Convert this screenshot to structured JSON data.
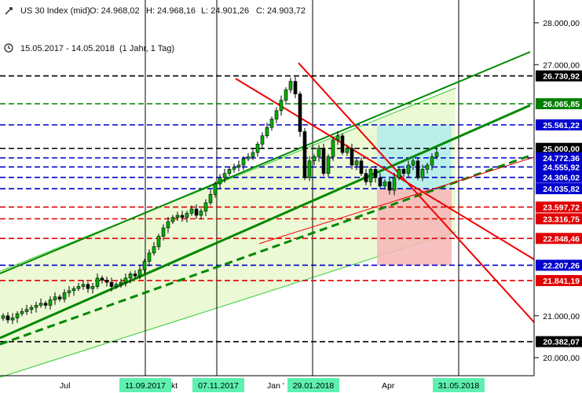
{
  "header": {
    "symbol": "US 30 Index (mid)",
    "open": "O: 24.968,02",
    "high": "H: 24.968,16",
    "low": "L: 24.901,26",
    "close": "C: 24.903,72",
    "range": "15.05.2017 - 14.05.2018",
    "period": "(1 Jahr, 1 Tag)"
  },
  "colors": {
    "black": "#000000",
    "green": "#008000",
    "red": "#e00000",
    "blue": "#0000cc",
    "light_green_fill": "#eaf8d0",
    "cyan_box": "#b0ecec",
    "pink_box": "#f7b6b6",
    "date_tag": "#5ef0b0"
  },
  "chart_data": {
    "type": "candlestick",
    "title": "US 30 Index (mid)",
    "y_axis_ticks": [
      "28.000,00",
      "27.000,00",
      "21.000,00",
      "20.000,00"
    ],
    "x_axis_labels": [
      "Jul",
      "Okt",
      "Jan",
      "Apr"
    ],
    "ylim": [
      19850,
      28400
    ],
    "price_levels": [
      {
        "label": "26.730,92",
        "value": 26730.92,
        "color": "black"
      },
      {
        "label": "26.065,85",
        "value": 26065.85,
        "color": "green"
      },
      {
        "label": "25.561,22",
        "value": 25561.22,
        "color": "blue"
      },
      {
        "label": "25.000,00",
        "value": 25000.0,
        "color": "black"
      },
      {
        "label": "24.772,36",
        "value": 24772.36,
        "color": "blue"
      },
      {
        "label": "24.555,92",
        "value": 24555.92,
        "color": "blue"
      },
      {
        "label": "24.306,02",
        "value": 24306.02,
        "color": "blue"
      },
      {
        "label": "24.035,82",
        "value": 24035.82,
        "color": "blue"
      },
      {
        "label": "23.597,72",
        "value": 23597.72,
        "color": "red"
      },
      {
        "label": "23.316,75",
        "value": 23316.75,
        "color": "red"
      },
      {
        "label": "22.848,46",
        "value": 22848.46,
        "color": "red"
      },
      {
        "label": "22.207,26",
        "value": 22207.26,
        "color": "blue"
      },
      {
        "label": "21.841,19",
        "value": 21841.19,
        "color": "red"
      },
      {
        "label": "20.382,07",
        "value": 20382.07,
        "color": "black"
      }
    ],
    "date_markers": [
      "11.09.2017",
      "07.11.2017",
      "29.01.2018",
      "31.05.2018"
    ],
    "axis_date_labels": [
      "Jul",
      "kt",
      "Jan '",
      "Apr"
    ],
    "close_series": [
      21000,
      20900,
      20950,
      21050,
      21100,
      21150,
      21200,
      21250,
      21300,
      21250,
      21380,
      21450,
      21400,
      21550,
      21600,
      21650,
      21700,
      21750,
      21650,
      21700,
      21900,
      21850,
      21800,
      21700,
      21750,
      21800,
      21900,
      22000,
      21950,
      22100,
      22300,
      22500,
      22650,
      22900,
      23100,
      23250,
      23350,
      23400,
      23350,
      23450,
      23550,
      23400,
      23500,
      23700,
      23900,
      24150,
      24300,
      24400,
      24500,
      24550,
      24600,
      24750,
      24800,
      24900,
      25100,
      25300,
      25500,
      25700,
      25900,
      26150,
      26400,
      26600,
      26300,
      25400,
      24300,
      24700,
      24800,
      25000,
      24400,
      24800,
      25200,
      25300,
      24900,
      25000,
      24600,
      24700,
      24400,
      24200,
      24500,
      24300,
      24100,
      24200,
      24000,
      24300,
      24500,
      24400,
      24600,
      24700,
      24300,
      24500,
      24600,
      24800,
      24900
    ]
  }
}
